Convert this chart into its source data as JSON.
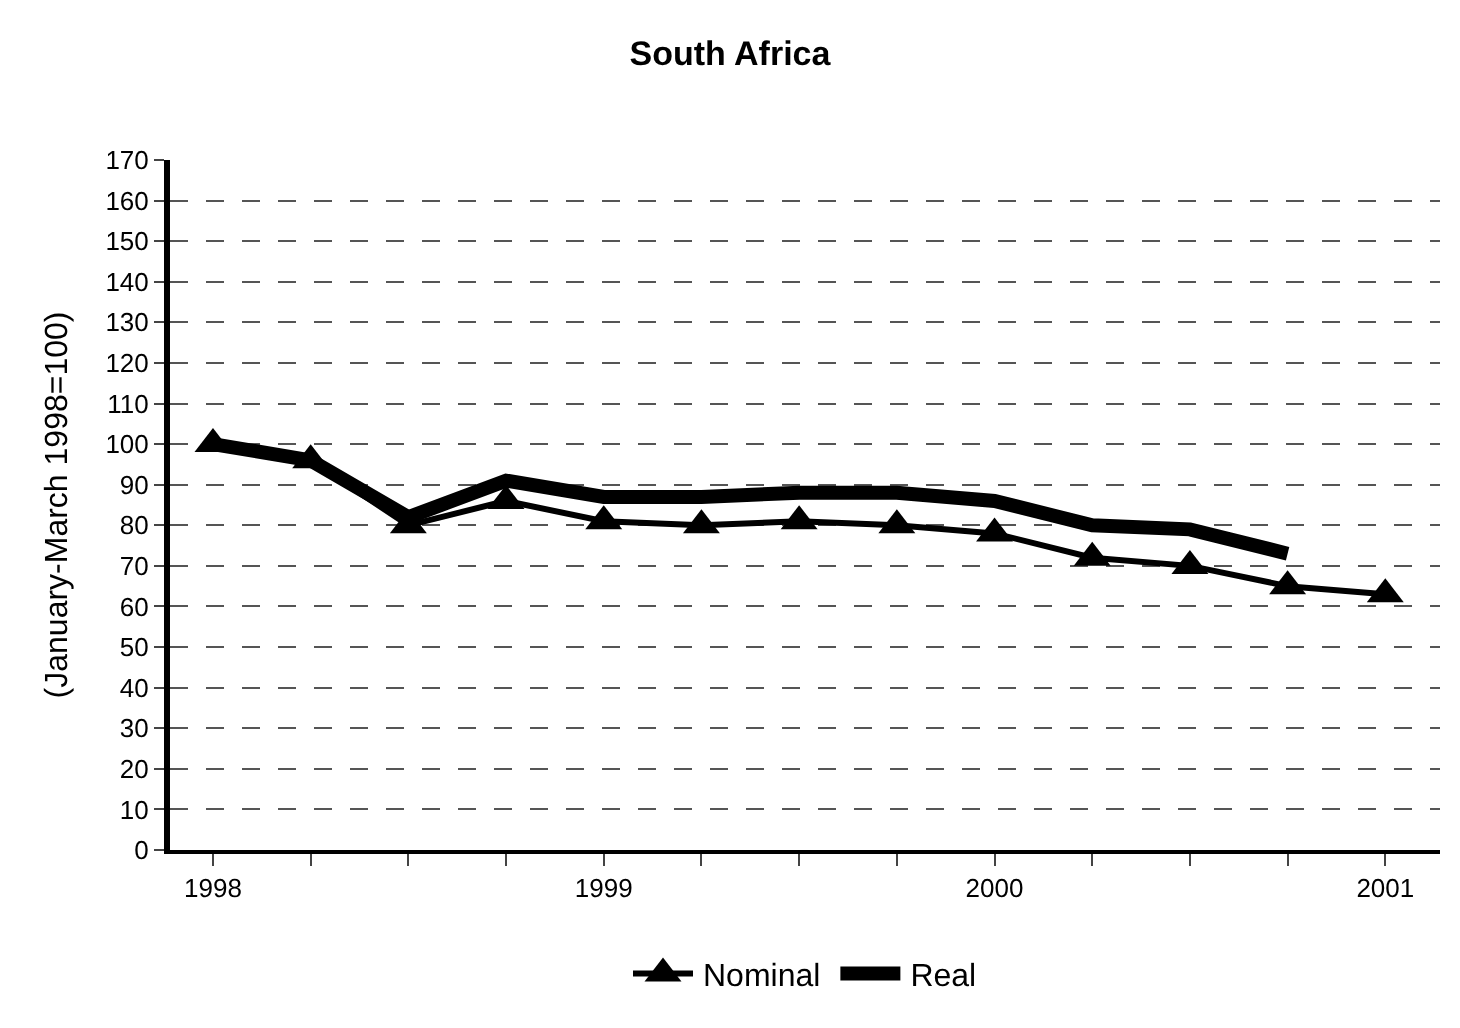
{
  "chart_data": {
    "type": "line",
    "title": "South Africa",
    "ylabel": "(January-March 1998=100)",
    "x": [
      1998,
      1998.25,
      1998.5,
      1998.75,
      1999,
      1999.25,
      1999.5,
      1999.75,
      2000,
      2000.25,
      2000.5,
      2000.75,
      2001
    ],
    "series": [
      {
        "name": "Nominal",
        "color": "#000000",
        "marker": "triangle",
        "values": [
          100,
          96,
          80,
          86,
          81,
          80,
          81,
          80,
          78,
          72,
          70,
          65,
          63
        ]
      },
      {
        "name": "Real",
        "color": "#000000",
        "marker": "none",
        "values": [
          100,
          96,
          82,
          91,
          87,
          87,
          88,
          88,
          86,
          80,
          79,
          73,
          null
        ]
      }
    ],
    "xlim": [
      1997.89,
      2001.14
    ],
    "xticks": [
      1998,
      {
        "value": 1998.25,
        "label": null
      },
      {
        "value": 1998.5,
        "label": null
      },
      {
        "value": 1998.75,
        "label": null
      },
      1999,
      {
        "value": 1999.25,
        "label": null
      },
      {
        "value": 1999.5,
        "label": null
      },
      {
        "value": 1999.75,
        "label": null
      },
      2000,
      {
        "value": 2000.25,
        "label": null
      },
      {
        "value": 2000.5,
        "label": null
      },
      {
        "value": 2000.75,
        "label": null
      },
      2001
    ],
    "ylim": [
      0,
      170
    ],
    "yticks": [
      0,
      10,
      20,
      30,
      40,
      50,
      60,
      70,
      80,
      90,
      100,
      110,
      120,
      130,
      140,
      150,
      160,
      170
    ],
    "grid": "y",
    "line_style": "solid",
    "legend": "bottom"
  }
}
